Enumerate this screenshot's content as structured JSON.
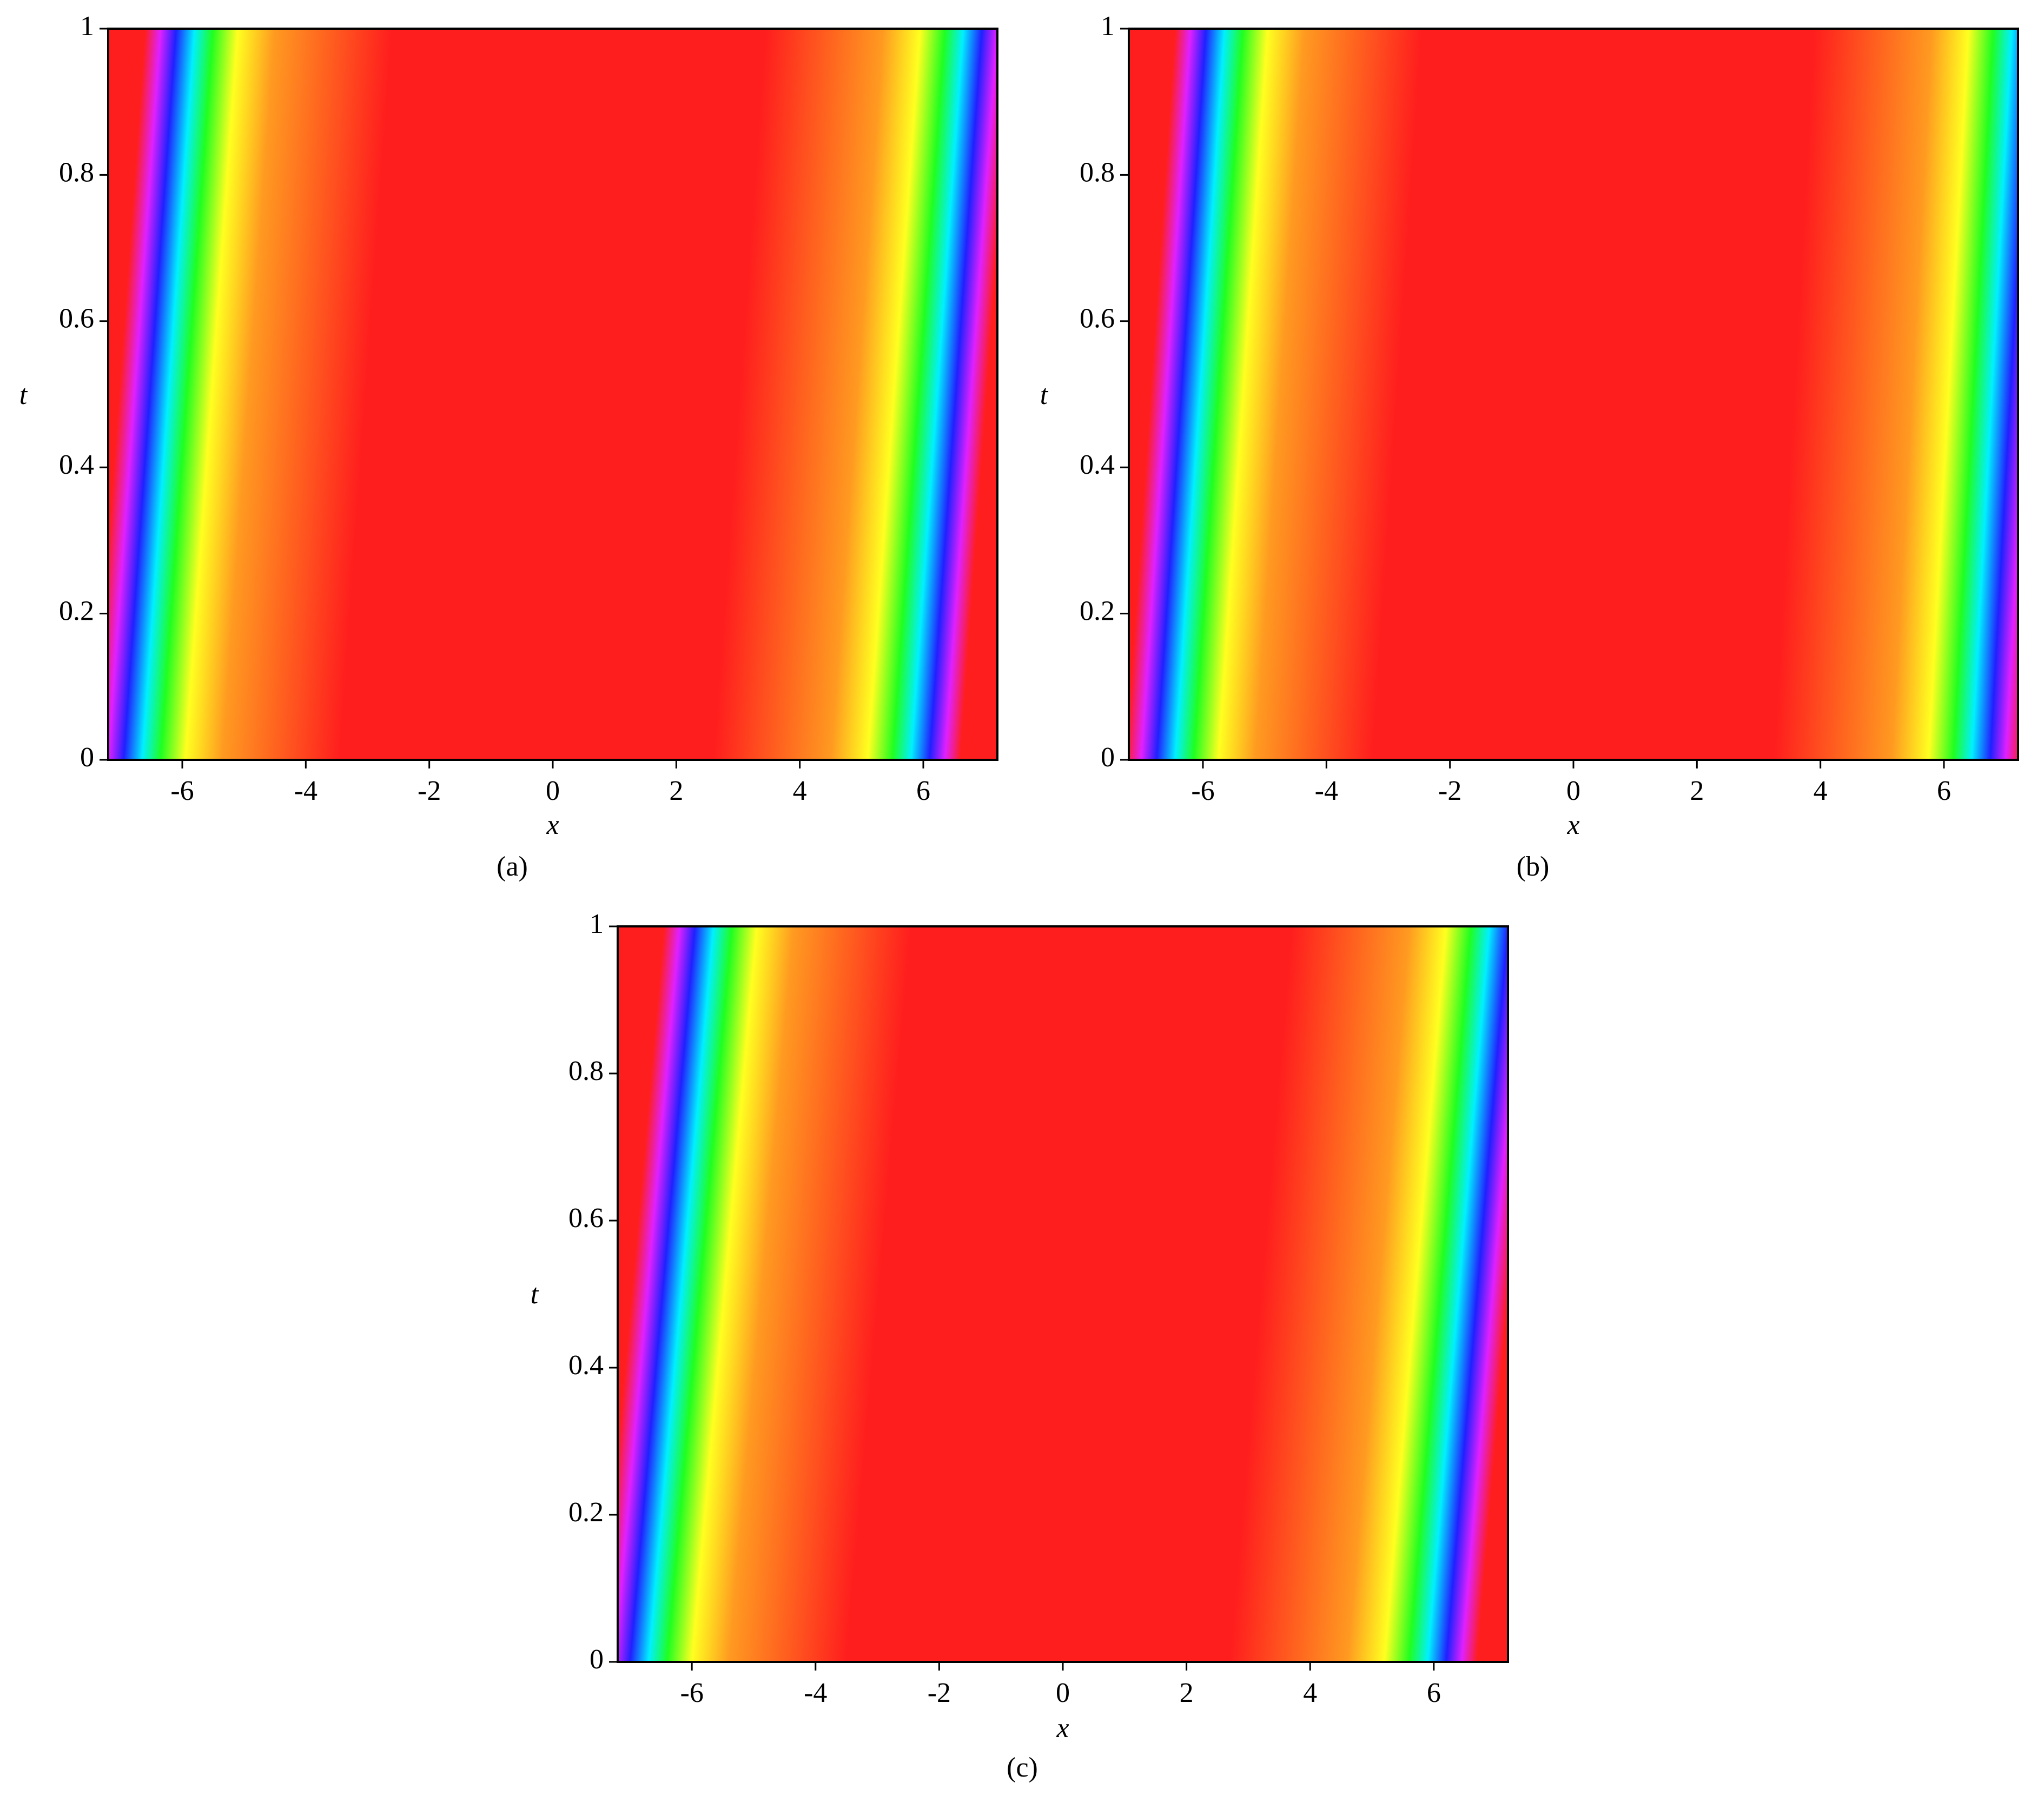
{
  "chart_data": [
    {
      "type": "density",
      "caption": "(a)",
      "xlabel": "x",
      "ylabel": "t",
      "color": "#ff1e1e",
      "xlim": [
        -7.2,
        7.2
      ],
      "ylim": [
        0,
        1
      ],
      "xticks": [
        -6,
        -4,
        -2,
        0,
        2,
        4,
        6
      ],
      "yticks": [
        0,
        0.2,
        0.4,
        0.6,
        0.8,
        1
      ],
      "fronts": [
        {
          "x": [
            -6.95,
            -6.1
          ],
          "t": [
            0,
            1
          ]
        },
        {
          "x": [
            6.1,
            6.95
          ],
          "t": [
            0,
            1
          ]
        }
      ]
    },
    {
      "type": "density",
      "caption": "(b)",
      "xlabel": "x",
      "ylabel": "t",
      "color": "#ff1e1e",
      "xlim": [
        -7.2,
        7.2
      ],
      "ylim": [
        0,
        1
      ],
      "xticks": [
        -6,
        -4,
        -2,
        0,
        2,
        4,
        6
      ],
      "yticks": [
        0,
        0.2,
        0.4,
        0.6,
        0.8,
        1
      ],
      "fronts": [
        {
          "x": [
            -6.75,
            -5.95
          ],
          "t": [
            0,
            1
          ]
        },
        {
          "x": [
            6.75,
            7.4
          ],
          "t": [
            0,
            1
          ]
        }
      ]
    },
    {
      "type": "density",
      "caption": "(c)",
      "xlabel": "x",
      "ylabel": "t",
      "color": "#ff1e1e",
      "xlim": [
        -7.2,
        7.2
      ],
      "ylim": [
        0,
        1
      ],
      "xticks": [
        -6,
        -4,
        -2,
        0,
        2,
        4,
        6
      ],
      "yticks": [
        0,
        0.2,
        0.4,
        0.6,
        0.8,
        1
      ],
      "fronts": [
        {
          "x": [
            -7.0,
            -5.95
          ],
          "t": [
            0,
            1
          ]
        },
        {
          "x": [
            6.2,
            7.2
          ],
          "t": [
            0,
            1
          ]
        }
      ]
    }
  ]
}
